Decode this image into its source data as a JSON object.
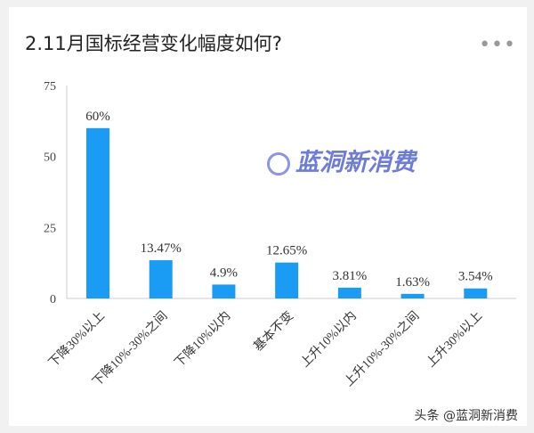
{
  "header": {
    "title": "2.11月国标经营变化幅度如何?",
    "more_icon": "more-horizontal-icon"
  },
  "watermark": "蓝洞新消费",
  "footer": "头条 @蓝洞新消费",
  "chart_data": {
    "type": "bar",
    "categories": [
      "下降30%以上",
      "下降10%-30%之间",
      "下降10%以内",
      "基本不变",
      "上升10%以内",
      "上升10%-30%之间",
      "上升30%以上"
    ],
    "values": [
      60,
      13.47,
      4.9,
      12.65,
      3.81,
      1.63,
      3.54
    ],
    "data_labels": [
      "60%",
      "13.47%",
      "4.9%",
      "12.65%",
      "3.81%",
      "1.63%",
      "3.54%"
    ],
    "ylim": [
      0,
      75
    ],
    "yticks": [
      0,
      25,
      50,
      75
    ],
    "grid": false,
    "bar_color": "#1a9cf4"
  }
}
